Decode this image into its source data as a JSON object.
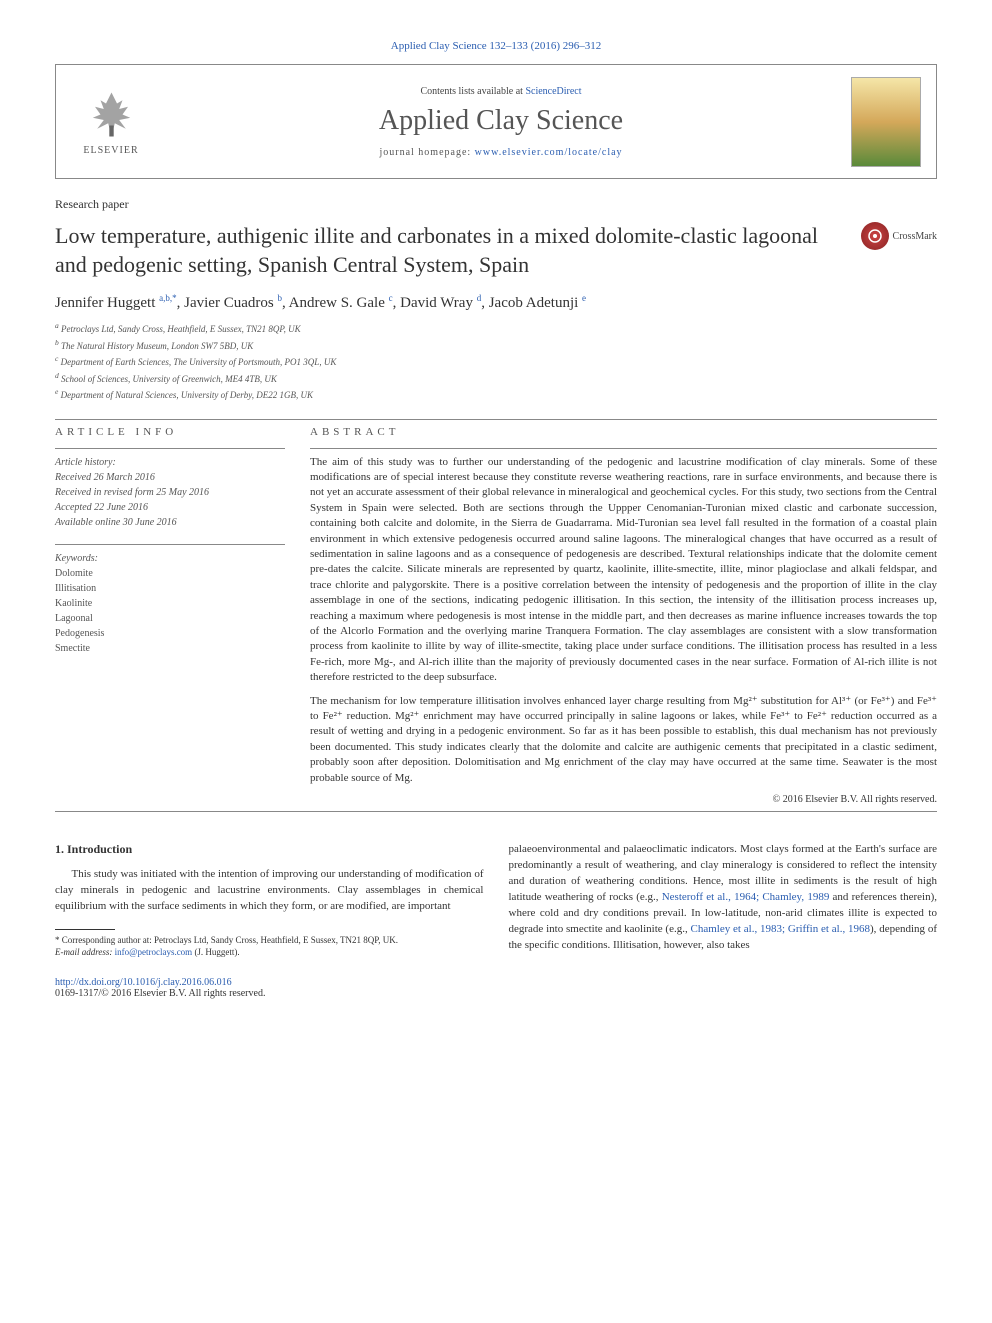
{
  "journal_ref": "Applied Clay Science 132–133 (2016) 296–312",
  "header": {
    "contents_prefix": "Contents lists available at ",
    "contents_link": "ScienceDirect",
    "journal_name": "Applied Clay Science",
    "homepage_prefix": "journal homepage: ",
    "homepage_link": "www.elsevier.com/locate/clay",
    "publisher": "ELSEVIER"
  },
  "article_type": "Research paper",
  "title": "Low temperature, authigenic illite and carbonates in a mixed dolomite-clastic lagoonal and pedogenic setting, Spanish Central System, Spain",
  "crossmark_label": "CrossMark",
  "authors": [
    {
      "name": "Jennifer Huggett ",
      "aff": "a,b,",
      "corr": "*"
    },
    {
      "name": ", Javier Cuadros ",
      "aff": "b",
      "corr": ""
    },
    {
      "name": ", Andrew S. Gale ",
      "aff": "c",
      "corr": ""
    },
    {
      "name": ", David Wray ",
      "aff": "d",
      "corr": ""
    },
    {
      "name": ", Jacob Adetunji ",
      "aff": "e",
      "corr": ""
    }
  ],
  "affiliations": [
    {
      "key": "a",
      "text": " Petroclays Ltd, Sandy Cross, Heathfield, E Sussex, TN21 8QP, UK"
    },
    {
      "key": "b",
      "text": " The Natural History Museum, London SW7 5BD, UK"
    },
    {
      "key": "c",
      "text": " Department of Earth Sciences, The University of Portsmouth, PO1 3QL, UK"
    },
    {
      "key": "d",
      "text": " School of Sciences, University of Greenwich, ME4 4TB, UK"
    },
    {
      "key": "e",
      "text": " Department of Natural Sciences, University of Derby, DE22 1GB, UK"
    }
  ],
  "article_info": {
    "heading": "article info",
    "history_label": "Article history:",
    "received": "Received 26 March 2016",
    "revised": "Received in revised form 25 May 2016",
    "accepted": "Accepted 22 June 2016",
    "online": "Available online 30 June 2016",
    "keywords_label": "Keywords:",
    "keywords": [
      "Dolomite",
      "Illitisation",
      "Kaolinite",
      "Lagoonal",
      "Pedogenesis",
      "Smectite"
    ]
  },
  "abstract": {
    "heading": "abstract",
    "p1": "The aim of this study was to further our understanding of the pedogenic and lacustrine modification of clay minerals. Some of these modifications are of special interest because they constitute reverse weathering reactions, rare in surface environments, and because there is not yet an accurate assessment of their global relevance in mineralogical and geochemical cycles. For this study, two sections from the Central System in Spain were selected. Both are sections through the Uppper Cenomanian-Turonian mixed clastic and carbonate succession, containing both calcite and dolomite, in the Sierra de Guadarrama. Mid-Turonian sea level fall resulted in the formation of a coastal plain environment in which extensive pedogenesis occurred around saline lagoons. The mineralogical changes that have occurred as a result of sedimentation in saline lagoons and as a consequence of pedogenesis are described. Textural relationships indicate that the dolomite cement pre-dates the calcite. Silicate minerals are represented by quartz, kaolinite, illite-smectite, illite, minor plagioclase and alkali feldspar, and trace chlorite and palygorskite. There is a positive correlation between the intensity of pedogenesis and the proportion of illite in the clay assemblage in one of the sections, indicating pedogenic illitisation. In this section, the intensity of the illitisation process increases up, reaching a maximum where pedogenesis is most intense in the middle part, and then decreases as marine influence increases towards the top of the Alcorlo Formation and the overlying marine Tranquera Formation. The clay assemblages are consistent with a slow transformation process from kaolinite to illite by way of illite-smectite, taking place under surface conditions. The illitisation process has resulted in a less Fe-rich, more Mg-, and Al-rich illite than the majority of previously documented cases in the near surface. Formation of Al-rich illite is not therefore restricted to the deep subsurface.",
    "p2": "The mechanism for low temperature illitisation involves enhanced layer charge resulting from Mg²⁺ substitution for Al³⁺ (or Fe³⁺) and Fe³⁺ to Fe²⁺ reduction. Mg²⁺ enrichment may have occurred principally in saline lagoons or lakes, while Fe³⁺ to Fe²⁺ reduction occurred as a result of wetting and drying in a pedogenic environment. So far as it has been possible to establish, this dual mechanism has not previously been documented. This study indicates clearly that the dolomite and calcite are authigenic cements that precipitated in a clastic sediment, probably soon after deposition. Dolomitisation and Mg enrichment of the clay may have occurred at the same time. Seawater is the most probable source of Mg.",
    "copyright": "© 2016 Elsevier B.V. All rights reserved."
  },
  "intro": {
    "heading": "1. Introduction",
    "p1": "This study was initiated with the intention of improving our understanding of modification of clay minerals in pedogenic and lacustrine environments. Clay assemblages in chemical equilibrium with the surface sediments in which they form, or are modified, are important",
    "p2_a": "palaeoenvironmental and palaeoclimatic indicators. Most clays formed at the Earth's surface are predominantly a result of weathering, and clay mineralogy is considered to reflect the intensity and duration of weathering conditions. Hence, most illite in sediments is the result of high latitude weathering of rocks (e.g., ",
    "p2_ref1": "Nesteroff et al., 1964; Chamley, 1989",
    "p2_b": " and references therein), where cold and dry conditions prevail. In low-latitude, non-arid climates illite is expected to degrade into smectite and kaolinite (e.g., ",
    "p2_ref2": "Chamley et al., 1983; Griffin et al., 1968",
    "p2_c": "), depending of the specific conditions. Illitisation, however, also takes"
  },
  "footnote": {
    "corr": "* Corresponding author at: Petroclays Ltd, Sandy Cross, Heathfield, E Sussex, TN21 8QP, UK.",
    "email_label": "E-mail address: ",
    "email": "info@petroclays.com",
    "email_suffix": " (J. Huggett)."
  },
  "doi": {
    "url": "http://dx.doi.org/10.1016/j.clay.2016.06.016",
    "issn_copyright": "0169-1317/© 2016 Elsevier B.V. All rights reserved."
  },
  "colors": {
    "link": "#2a5db0",
    "text": "#333333",
    "muted": "#555555",
    "border": "#888888"
  }
}
